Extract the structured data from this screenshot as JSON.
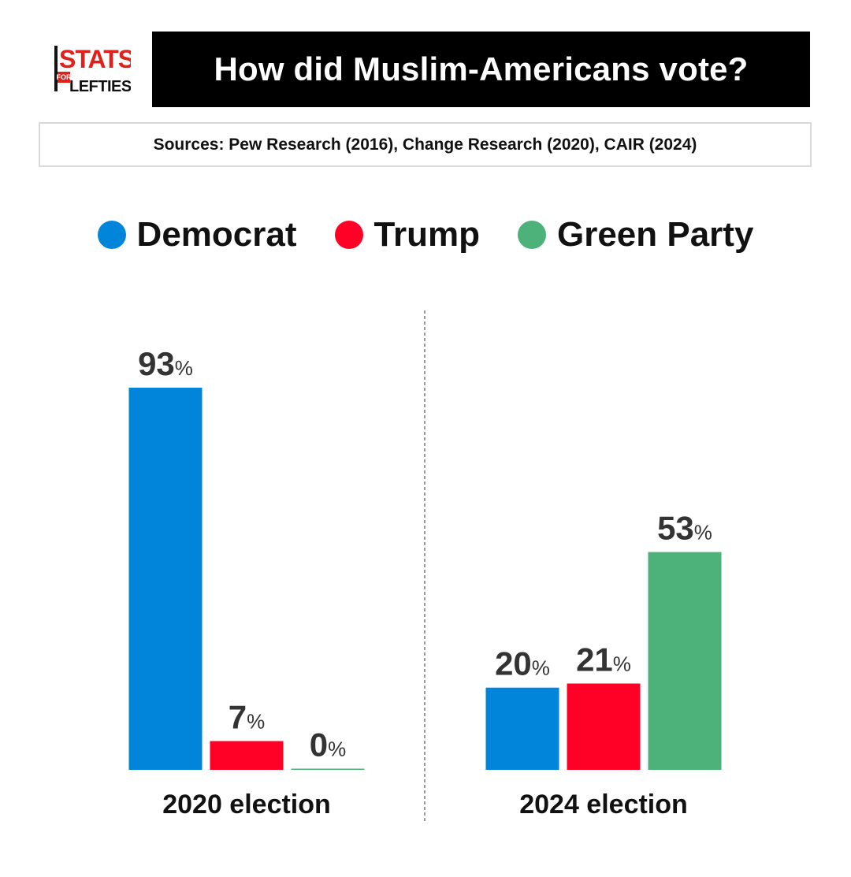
{
  "logo": {
    "line1": "STATS",
    "line2": "FOR",
    "line3": "LEFTIES"
  },
  "header": {
    "title": "How did Muslim-Americans vote?"
  },
  "sources": {
    "text": "Sources: Pew Research (2016), Change Research (2020), CAIR (2024)"
  },
  "legend": [
    {
      "label": "Democrat",
      "color": "#0085DB"
    },
    {
      "label": "Trump",
      "color": "#FF0026"
    },
    {
      "label": "Green Party",
      "color": "#4CB27A"
    }
  ],
  "chart_data": {
    "type": "bar",
    "title": "How did Muslim-Americans vote?",
    "categories": [
      "2020 election",
      "2024 election"
    ],
    "series": [
      {
        "name": "Democrat",
        "color": "#0085DB",
        "values": [
          93,
          20
        ]
      },
      {
        "name": "Trump",
        "color": "#FF0026",
        "values": [
          7,
          21
        ]
      },
      {
        "name": "Green Party",
        "color": "#4CB27A",
        "values": [
          0,
          53
        ]
      }
    ],
    "unit": "%",
    "ylim": [
      0,
      93
    ],
    "grid": false,
    "legend_position": "top-center"
  }
}
